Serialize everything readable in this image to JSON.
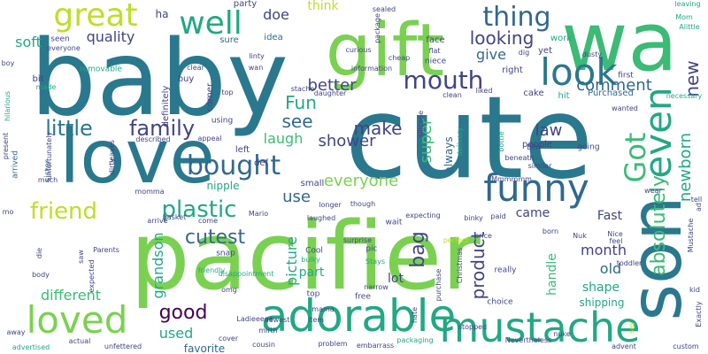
{
  "palette": {
    "dark_purple": "#440154",
    "indigo": "#414487",
    "slate_blue": "#2a788e",
    "steel": "#31688e",
    "teal": "#22a884",
    "green": "#3bbb75",
    "lime": "#7ad151",
    "yellow_green": "#bddf26",
    "background": "#ffffff"
  },
  "words": [
    {
      "text": "cute",
      "color": "slate_blue"
    },
    {
      "text": "baby",
      "color": "slate_blue"
    },
    {
      "text": "pacifier",
      "color": "lime"
    },
    {
      "text": "gift",
      "color": "lime"
    },
    {
      "text": "wa",
      "color": "green"
    },
    {
      "text": "love",
      "color": "slate_blue"
    },
    {
      "text": "son",
      "color": "slate_blue"
    },
    {
      "text": "adorable",
      "color": "teal"
    },
    {
      "text": "mustache",
      "color": "teal"
    },
    {
      "text": "funny",
      "color": "steel"
    },
    {
      "text": "look",
      "color": "slate_blue"
    },
    {
      "text": "loved",
      "color": "lime"
    },
    {
      "text": "even",
      "color": "teal"
    },
    {
      "text": "great",
      "color": "yellow_green"
    },
    {
      "text": "bought",
      "color": "steel"
    },
    {
      "text": "well",
      "color": "teal"
    },
    {
      "text": "thing",
      "color": "steel"
    },
    {
      "text": "mouth",
      "color": "indigo"
    },
    {
      "text": "Got",
      "color": "green"
    },
    {
      "text": "friend",
      "color": "yellow_green"
    },
    {
      "text": "plastic",
      "color": "teal"
    },
    {
      "text": "little",
      "color": "slate_blue"
    },
    {
      "text": "family",
      "color": "indigo"
    },
    {
      "text": "cutest",
      "color": "steel"
    },
    {
      "text": "good",
      "color": "dark_purple"
    },
    {
      "text": "absolutely",
      "color": "green"
    },
    {
      "text": "bag",
      "color": "indigo"
    },
    {
      "text": "product",
      "color": "indigo"
    },
    {
      "text": "looking",
      "color": "indigo"
    },
    {
      "text": "comment",
      "color": "steel"
    },
    {
      "text": "Fun",
      "color": "teal"
    },
    {
      "text": "see",
      "color": "steel"
    },
    {
      "text": "make",
      "color": "indigo"
    },
    {
      "text": "shower",
      "color": "indigo"
    },
    {
      "text": "super",
      "color": "green"
    },
    {
      "text": "law",
      "color": "indigo"
    },
    {
      "text": "newborn",
      "color": "teal"
    },
    {
      "text": "new",
      "color": "indigo"
    },
    {
      "text": "everyone",
      "color": "lime"
    },
    {
      "text": "soft",
      "color": "teal"
    },
    {
      "text": "quality",
      "color": "indigo"
    },
    {
      "text": "doe",
      "color": "indigo"
    },
    {
      "text": "think",
      "color": "yellow_green"
    },
    {
      "text": "give",
      "color": "steel"
    },
    {
      "text": "better",
      "color": "indigo"
    },
    {
      "text": "laugh",
      "color": "green"
    },
    {
      "text": "use",
      "color": "steel"
    },
    {
      "text": "picture",
      "color": "teal"
    },
    {
      "text": "grandson",
      "color": "teal"
    },
    {
      "text": "different",
      "color": "green"
    },
    {
      "text": "used",
      "color": "teal"
    },
    {
      "text": "month",
      "color": "indigo"
    },
    {
      "text": "old",
      "color": "steel"
    },
    {
      "text": "shape",
      "color": "teal"
    },
    {
      "text": "came",
      "color": "indigo"
    },
    {
      "text": "Fast",
      "color": "indigo"
    },
    {
      "text": "lot",
      "color": "indigo"
    },
    {
      "text": "part",
      "color": "teal"
    },
    {
      "text": "handle",
      "color": "green"
    },
    {
      "text": "favorite",
      "color": "steel"
    },
    {
      "text": "shipping",
      "color": "teal"
    },
    {
      "text": "nipple",
      "color": "teal"
    },
    {
      "text": "always",
      "color": "steel"
    },
    {
      "text": "ha",
      "color": "indigo"
    },
    {
      "text": "party",
      "color": "indigo"
    },
    {
      "text": "sealed",
      "color": "indigo"
    },
    {
      "text": "leaving",
      "color": "teal"
    },
    {
      "text": "sure",
      "color": "steel"
    },
    {
      "text": "idea",
      "color": "steel"
    },
    {
      "text": "face",
      "color": "indigo"
    },
    {
      "text": "yet",
      "color": "indigo"
    },
    {
      "text": "work",
      "color": "teal"
    },
    {
      "text": "Alittle",
      "color": "teal"
    },
    {
      "text": "Mom",
      "color": "teal"
    },
    {
      "text": "seen",
      "color": "indigo"
    },
    {
      "text": "removable",
      "color": "teal"
    },
    {
      "text": "clear",
      "color": "indigo"
    },
    {
      "text": "wan",
      "color": "indigo"
    },
    {
      "text": "linty",
      "color": "indigo"
    },
    {
      "text": "curious",
      "color": "indigo"
    },
    {
      "text": "niece",
      "color": "indigo"
    },
    {
      "text": "right",
      "color": "indigo"
    },
    {
      "text": "dusty",
      "color": "indigo"
    },
    {
      "text": "first",
      "color": "indigo"
    },
    {
      "text": "bit",
      "color": "indigo"
    },
    {
      "text": "made",
      "color": "teal"
    },
    {
      "text": "buy",
      "color": "indigo"
    },
    {
      "text": "definitely",
      "color": "indigo"
    },
    {
      "text": "corner",
      "color": "indigo"
    },
    {
      "text": "stache",
      "color": "indigo"
    },
    {
      "text": "clean",
      "color": "indigo"
    },
    {
      "text": "cake",
      "color": "indigo"
    },
    {
      "text": "hit",
      "color": "teal"
    },
    {
      "text": "Purchased",
      "color": "steel"
    },
    {
      "text": "wanted",
      "color": "indigo"
    },
    {
      "text": "necessary",
      "color": "teal"
    },
    {
      "text": "boy",
      "color": "indigo"
    },
    {
      "text": "hilarious",
      "color": "teal"
    },
    {
      "text": "arrived",
      "color": "steel"
    },
    {
      "text": "sister",
      "color": "steel"
    },
    {
      "text": "much",
      "color": "indigo"
    },
    {
      "text": "described",
      "color": "indigo"
    },
    {
      "text": "using",
      "color": "indigo"
    },
    {
      "text": "appeal",
      "color": "indigo"
    },
    {
      "text": "left",
      "color": "indigo"
    },
    {
      "text": "def",
      "color": "indigo"
    },
    {
      "text": "small",
      "color": "indigo"
    },
    {
      "text": "wait",
      "color": "indigo"
    },
    {
      "text": "people",
      "color": "indigo"
    },
    {
      "text": "similar",
      "color": "indigo"
    },
    {
      "text": "going",
      "color": "indigo"
    },
    {
      "text": "Nuk",
      "color": "indigo"
    },
    {
      "text": "price",
      "color": "indigo"
    },
    {
      "text": "wear",
      "color": "indigo"
    },
    {
      "text": "paid",
      "color": "indigo"
    },
    {
      "text": "born",
      "color": "indigo"
    },
    {
      "text": "mo",
      "color": "indigo"
    },
    {
      "text": "momma",
      "color": "indigo"
    },
    {
      "text": "basket",
      "color": "indigo"
    },
    {
      "text": "arrive",
      "color": "indigo"
    },
    {
      "text": "come",
      "color": "indigo"
    },
    {
      "text": "laughed",
      "color": "indigo"
    },
    {
      "text": "longer",
      "color": "indigo"
    },
    {
      "text": "expecting",
      "color": "indigo"
    },
    {
      "text": "binky",
      "color": "indigo"
    },
    {
      "text": "feel",
      "color": "indigo"
    },
    {
      "text": "Nice",
      "color": "indigo"
    },
    {
      "text": "toddler",
      "color": "indigo"
    },
    {
      "text": "kid",
      "color": "indigo"
    },
    {
      "text": "Parents",
      "color": "indigo"
    },
    {
      "text": "snap",
      "color": "indigo"
    },
    {
      "text": "friendly",
      "color": "teal"
    },
    {
      "text": "Cool",
      "color": "indigo"
    },
    {
      "text": "bulky",
      "color": "teal"
    },
    {
      "text": "pic",
      "color": "indigo"
    },
    {
      "text": "Stays",
      "color": "teal"
    },
    {
      "text": "purchase",
      "color": "indigo"
    },
    {
      "text": "die",
      "color": "indigo"
    },
    {
      "text": "saw",
      "color": "indigo"
    },
    {
      "text": "expected",
      "color": "indigo"
    },
    {
      "text": "body",
      "color": "indigo"
    },
    {
      "text": "disappointment",
      "color": "teal"
    },
    {
      "text": "omg",
      "color": "indigo"
    },
    {
      "text": "top",
      "color": "indigo"
    },
    {
      "text": "really",
      "color": "indigo"
    },
    {
      "text": "narrow",
      "color": "indigo"
    },
    {
      "text": "free",
      "color": "indigo"
    },
    {
      "text": "choice",
      "color": "indigo"
    },
    {
      "text": "away",
      "color": "indigo"
    },
    {
      "text": "actual",
      "color": "indigo"
    },
    {
      "text": "advertised",
      "color": "teal"
    },
    {
      "text": "unfettered",
      "color": "indigo"
    },
    {
      "text": "cover",
      "color": "indigo"
    },
    {
      "text": "cousin",
      "color": "indigo"
    },
    {
      "text": "problem",
      "color": "indigo"
    },
    {
      "text": "embarrass",
      "color": "indigo"
    },
    {
      "text": "packaging",
      "color": "teal"
    },
    {
      "text": "Nevertheless",
      "color": "indigo"
    },
    {
      "text": "nuke",
      "color": "indigo"
    },
    {
      "text": "advent",
      "color": "indigo"
    },
    {
      "text": "custom",
      "color": "indigo"
    },
    {
      "text": "Exactly",
      "color": "indigo"
    },
    {
      "text": "item",
      "color": "indigo"
    },
    {
      "text": "BPA",
      "color": "indigo"
    },
    {
      "text": "mirth",
      "color": "indigo"
    },
    {
      "text": "delivery",
      "color": "teal"
    },
    {
      "text": "bottle",
      "color": "teal"
    },
    {
      "text": "beneath",
      "color": "indigo"
    },
    {
      "text": "cheap",
      "color": "indigo"
    },
    {
      "text": "package",
      "color": "indigo"
    },
    {
      "text": "flat",
      "color": "indigo"
    },
    {
      "text": "information",
      "color": "indigo"
    },
    {
      "text": "dig",
      "color": "indigo"
    },
    {
      "text": "present",
      "color": "indigo"
    },
    {
      "text": "everyone",
      "color": "indigo"
    },
    {
      "text": "though",
      "color": "indigo"
    },
    {
      "text": "surprise",
      "color": "indigo"
    },
    {
      "text": "perfect",
      "color": "yellow_green"
    },
    {
      "text": "mama",
      "color": "indigo"
    },
    {
      "text": "stopped",
      "color": "indigo"
    },
    {
      "text": "newest",
      "color": "indigo"
    },
    {
      "text": "Christmas",
      "color": "indigo"
    },
    {
      "text": "silicone",
      "color": "indigo"
    },
    {
      "text": "liked",
      "color": "indigo"
    },
    {
      "text": "daughter",
      "color": "indigo"
    },
    {
      "text": "tell",
      "color": "indigo"
    },
    {
      "text": "unfortunately",
      "color": "indigo"
    },
    {
      "text": "dirty",
      "color": "indigo"
    },
    {
      "text": "Mario",
      "color": "indigo"
    },
    {
      "text": "Ladieeeee",
      "color": "indigo"
    },
    {
      "text": "top",
      "color": "indigo"
    },
    {
      "text": "Mustache",
      "color": "indigo"
    },
    {
      "text": "ad",
      "color": "indigo"
    },
    {
      "text": "hate",
      "color": "indigo"
    },
    {
      "text": "say",
      "color": "yellow_green"
    },
    {
      "text": "Mmmmmm",
      "color": "indigo"
    },
    {
      "text": "leaves",
      "color": "indigo"
    }
  ]
}
